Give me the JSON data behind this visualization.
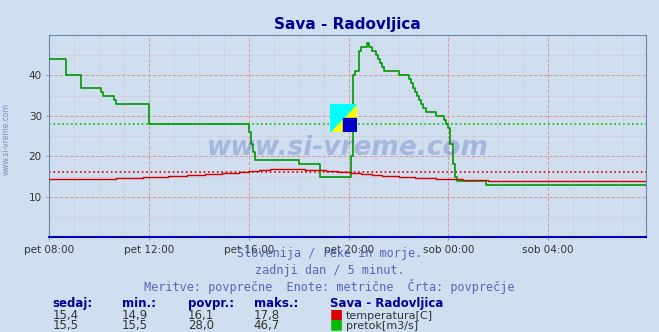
{
  "title": "Sava - Radovljica",
  "title_color": "#000099",
  "background_color": "#d0dff0",
  "xlabel_ticks": [
    "pet 08:00",
    "pet 12:00",
    "pet 16:00",
    "pet 20:00",
    "sob 00:00",
    "sob 04:00"
  ],
  "yticks": [
    10,
    20,
    30,
    40
  ],
  "ylim": [
    0,
    50
  ],
  "xlim": [
    0,
    287
  ],
  "tick_positions": [
    0,
    48,
    96,
    144,
    192,
    240
  ],
  "avg_green_line": 28.0,
  "avg_red_line": 16.1,
  "footer_lines": [
    "Slovenija / reke in morje.",
    "zadnji dan / 5 minut.",
    "Meritve: povprečne  Enote: metrične  Črta: povprečje"
  ],
  "footer_color": "#5566bb",
  "footer_fontsize": 8.5,
  "legend_title": "Sava - Radovljica",
  "legend_color": "#000099",
  "legend_items": [
    {
      "label": "temperatura[C]",
      "color": "#dd0000"
    },
    {
      "label": "pretok[m3/s]",
      "color": "#00bb00"
    }
  ],
  "stats_labels": [
    "sedaj:",
    "min.:",
    "povpr.:",
    "maks.:"
  ],
  "stats_temp": [
    "15,4",
    "14,9",
    "16,1",
    "17,8"
  ],
  "stats_flow": [
    "15,5",
    "15,5",
    "28,0",
    "46,7"
  ],
  "watermark": "www.si-vreme.com",
  "watermark_color": "#3355aa",
  "watermark_alpha": 0.28,
  "ylabel_text": "www.si-vreme.com",
  "n_points": 288,
  "temp_color": "#cc0000",
  "flow_color": "#009900",
  "avg_line_color_green": "#00cc00",
  "avg_line_color_red": "#dd0000",
  "grid_color": "#dd9999",
  "spine_color": "#6688aa"
}
